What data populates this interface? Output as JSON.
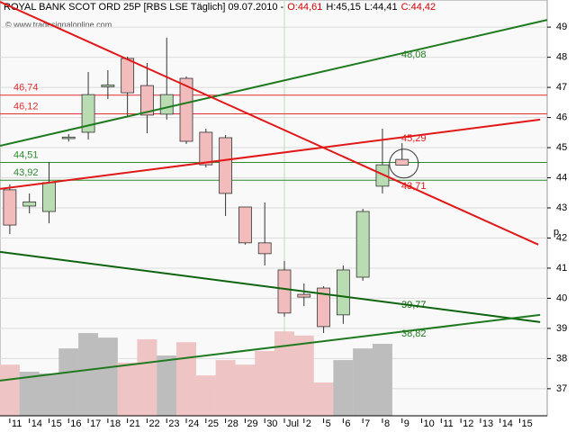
{
  "chart_data": {
    "type": "candlestick",
    "title": "ROYAL BANK SCOT ORD 25P [RBS LSE  Täglich] 09.07.2010 -",
    "ohlc_labels": [
      {
        "label": "O:44,61",
        "color": "#d00000"
      },
      {
        "label": "H:45,15",
        "color": "#000000"
      },
      {
        "label": "L:44,41",
        "color": "#000000"
      },
      {
        "label": "C:44,42",
        "color": "#d00000"
      }
    ],
    "watermark": "© www.tradesignalonline.com",
    "axis_unit": "p",
    "categories": [
      "11",
      "14",
      "15",
      "16",
      "17",
      "18",
      "21",
      "22",
      "23",
      "24",
      "25",
      "28",
      "29",
      "30",
      "Jul",
      "2",
      "5",
      "6",
      "7",
      "8",
      "9",
      "10",
      "11",
      "12",
      "13",
      "14",
      "15"
    ],
    "open": [
      43.6,
      43.06,
      42.88,
      45.3,
      45.51,
      47.02,
      47.96,
      47.06,
      46.11,
      47.3,
      45.51,
      45.33,
      43.03,
      41.84,
      40.94,
      40.13,
      40.34,
      39.45,
      40.7,
      43.72,
      44.61,
      null,
      null,
      null,
      null,
      null,
      null
    ],
    "high": [
      43.78,
      43.48,
      44.52,
      45.45,
      47.51,
      47.57,
      48.02,
      47.81,
      48.65,
      47.36,
      45.63,
      45.42,
      43.03,
      43.18,
      41.24,
      40.49,
      40.4,
      41.09,
      42.97,
      45.63,
      45.15,
      null,
      null,
      null,
      null,
      null,
      null
    ],
    "low": [
      42.13,
      42.82,
      42.49,
      45.2,
      45.27,
      46.61,
      46.02,
      45.48,
      45.93,
      45.12,
      44.34,
      42.73,
      41.78,
      41.09,
      39.39,
      39.74,
      38.85,
      39.15,
      40.58,
      43.48,
      44.41,
      null,
      null,
      null,
      null,
      null,
      null
    ],
    "close": [
      42.43,
      43.2,
      43.84,
      45.35,
      46.76,
      47.08,
      46.82,
      46.08,
      46.76,
      45.21,
      44.43,
      43.48,
      41.84,
      41.48,
      39.51,
      40.04,
      39.06,
      40.94,
      42.88,
      44.43,
      44.42,
      null,
      null,
      null,
      null,
      null,
      null
    ],
    "volume": [
      12.3,
      10.6,
      10.2,
      16.2,
      19.9,
      18.8,
      12.8,
      18.4,
      14.5,
      17.7,
      9.7,
      13.4,
      12.3,
      15.6,
      20.3,
      19.3,
      8,
      13.4,
      16.2,
      17.3,
      null,
      null,
      null,
      null,
      null,
      null,
      null
    ],
    "volume_lim": [
      0,
      100
    ],
    "up_color": "#b9dcb3",
    "down_color": "#f2bcbc",
    "up_volume_color": "#bdbdbd",
    "down_volume_color": "#eec4c4",
    "xlim": [
      -0.5,
      27.4
    ],
    "ylim": [
      36.1,
      49.9
    ],
    "yticks": [
      37,
      38,
      39,
      40,
      41,
      42,
      43,
      44,
      45,
      46,
      47,
      48,
      49
    ],
    "grid": true,
    "levels": [
      {
        "value": 46.74,
        "label": "46,74",
        "color": "#e03030"
      },
      {
        "value": 46.12,
        "label": "46,12",
        "color": "#e03030"
      },
      {
        "value": 44.51,
        "label": "44,51",
        "color": "#2e8b2e"
      },
      {
        "value": 43.92,
        "label": "43,92",
        "color": "#2e8b2e"
      }
    ],
    "trendlines": [
      {
        "x": [
          -0.5,
          27.4
        ],
        "values": [
          45.06,
          49.24
        ],
        "color": "#1f7a1f",
        "label": {
          "value": 48.08,
          "label": "48,08"
        }
      },
      {
        "x": [
          -0.5,
          26.95
        ],
        "values": [
          49.84,
          41.78
        ],
        "color": "#e01818",
        "label": {
          "value": 43.71,
          "label": "43,71"
        }
      },
      {
        "x": [
          -0.5,
          27.04
        ],
        "values": [
          43.63,
          45.93
        ],
        "color": "#e01818",
        "label": {
          "value": 45.29,
          "label": "45,29"
        }
      },
      {
        "x": [
          -0.5,
          27.04
        ],
        "values": [
          41.54,
          39.21
        ],
        "color": "#0e640e",
        "label": {
          "value": 39.77,
          "label": "39,77"
        }
      },
      {
        "x": [
          -0.5,
          27.04
        ],
        "values": [
          37.27,
          39.45
        ],
        "color": "#1f7a1f",
        "label": {
          "value": 38.82,
          "label": "38,82"
        }
      }
    ]
  }
}
